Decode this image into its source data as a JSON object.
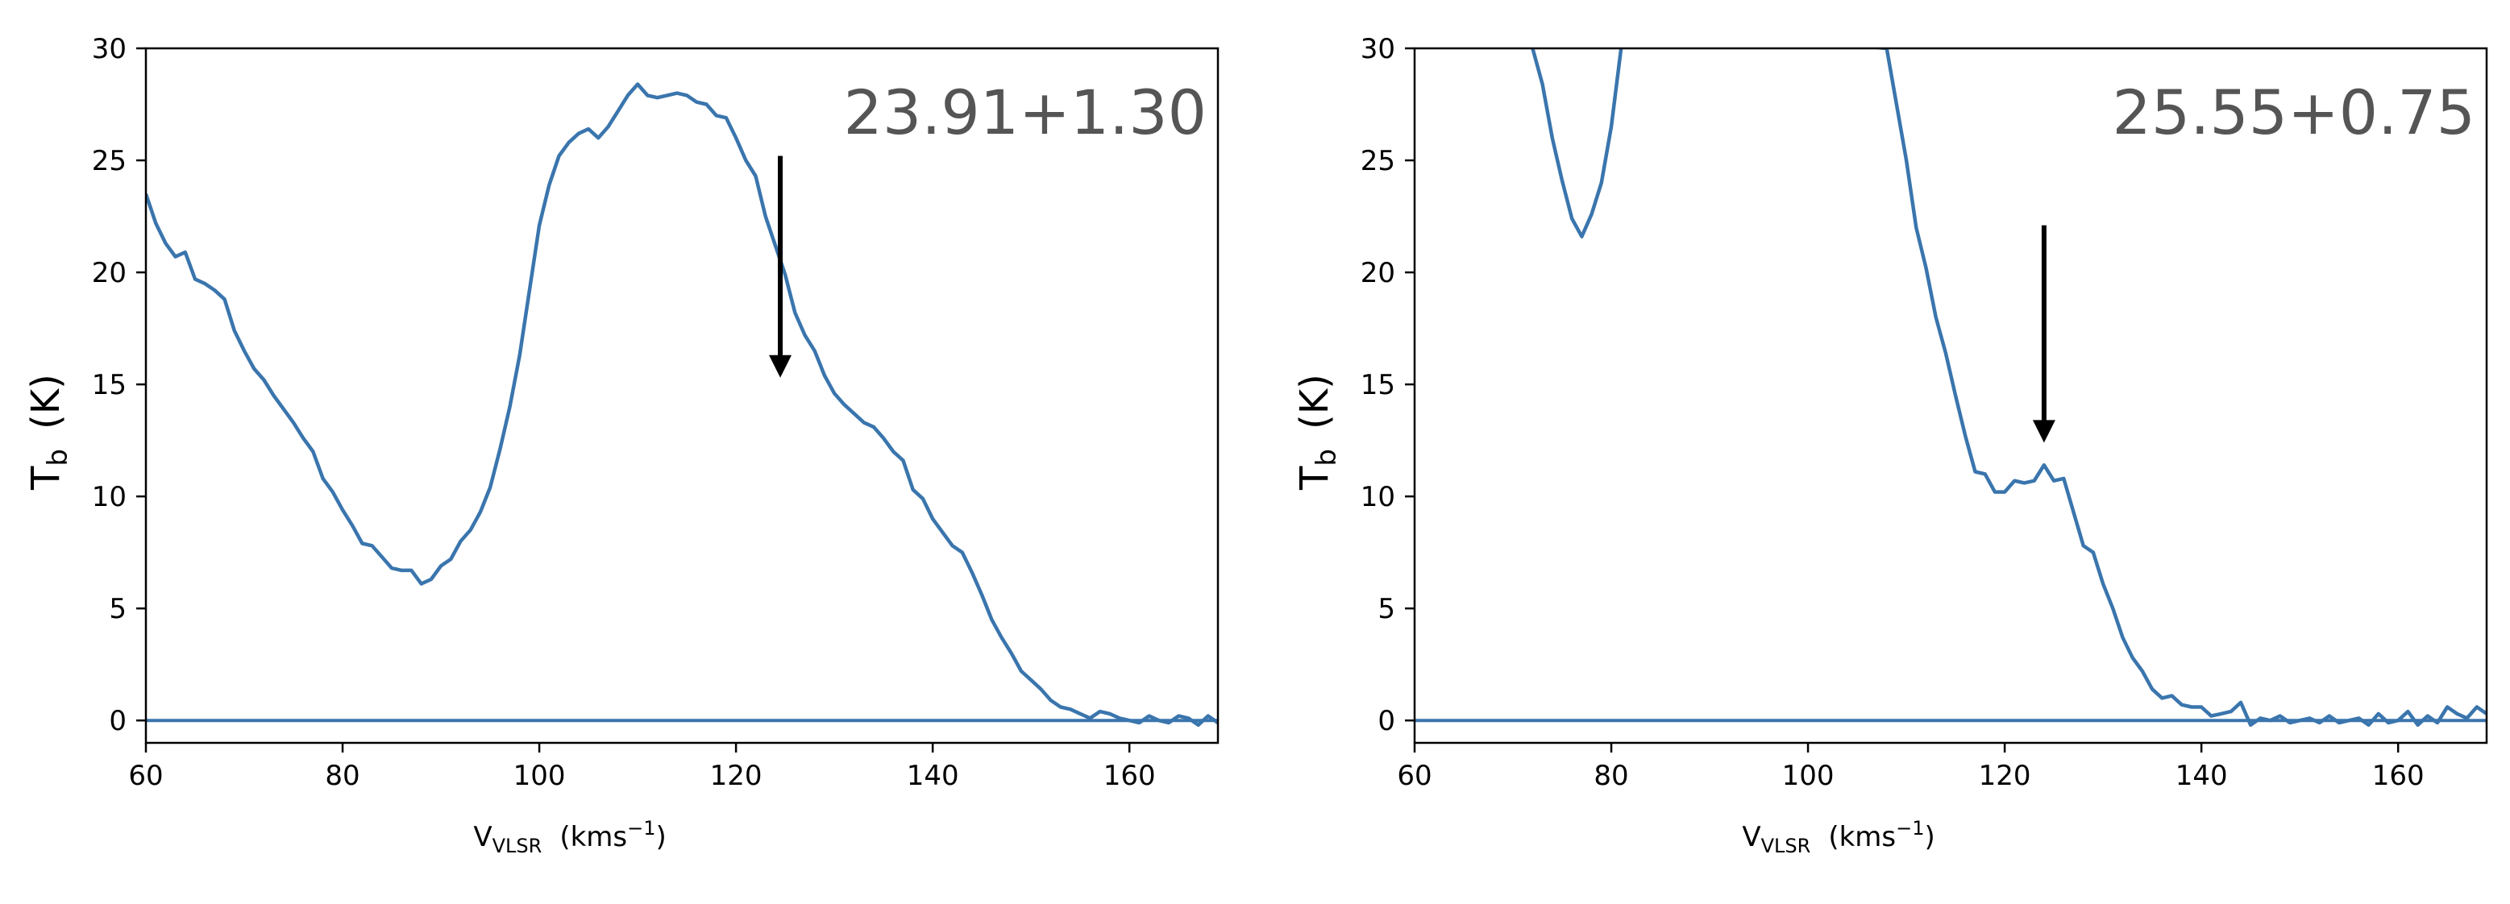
{
  "chart_data": [
    {
      "type": "line",
      "annotation": "23.91+1.30",
      "ylabel_main": "T",
      "ylabel_sub": "b",
      "ylabel_unit": "(K)",
      "xlabel_main": "V",
      "xlabel_sub": "VLSR",
      "xlabel_unit_pre": "(kms",
      "xlabel_unit_exp": "−1",
      "xlabel_unit_post": ")",
      "xlim": [
        60,
        169
      ],
      "ylim": [
        -1,
        30
      ],
      "xticks": [
        60,
        80,
        100,
        120,
        140,
        160
      ],
      "yticks": [
        0,
        5,
        10,
        15,
        20,
        25,
        30
      ],
      "arrow": {
        "x": 124.5,
        "y_from": 25.2,
        "y_to": 15.3
      },
      "baseline": 0,
      "series": [
        {
          "color": "#3a75ad",
          "x": [
            60,
            61,
            62,
            63,
            64,
            65,
            66,
            67,
            68,
            69,
            70,
            71,
            72,
            73,
            74,
            75,
            76,
            77,
            78,
            79,
            80,
            81,
            82,
            83,
            84,
            85,
            86,
            87,
            88,
            89,
            90,
            91,
            92,
            93,
            94,
            95,
            96,
            97,
            98,
            99,
            100,
            101,
            102,
            103,
            104,
            105,
            106,
            107,
            108,
            109,
            110,
            111,
            112,
            113,
            114,
            115,
            116,
            117,
            118,
            119,
            120,
            121,
            122,
            123,
            124,
            125,
            126,
            127,
            128,
            129,
            130,
            131,
            132,
            133,
            134,
            135,
            136,
            137,
            138,
            139,
            140,
            141,
            142,
            143,
            144,
            145,
            146,
            147,
            148,
            149,
            150,
            151,
            152,
            153,
            154,
            155,
            156,
            157,
            158,
            159,
            160,
            161,
            162,
            163,
            164,
            165,
            166,
            167,
            168,
            169
          ],
          "y": [
            23.5,
            22.2,
            21.3,
            20.7,
            20.9,
            19.7,
            19.5,
            19.2,
            18.8,
            17.4,
            16.5,
            15.7,
            15.2,
            14.5,
            13.9,
            13.3,
            12.6,
            12.0,
            10.8,
            10.2,
            9.4,
            8.7,
            7.9,
            7.8,
            7.3,
            6.8,
            6.7,
            6.7,
            6.1,
            6.3,
            6.9,
            7.2,
            8.0,
            8.5,
            9.3,
            10.4,
            12.1,
            14.0,
            16.3,
            19.2,
            22.1,
            23.9,
            25.2,
            25.8,
            26.2,
            26.4,
            26.0,
            26.5,
            27.2,
            27.9,
            28.4,
            27.9,
            27.8,
            27.9,
            28.0,
            27.9,
            27.6,
            27.5,
            27.0,
            26.9,
            26.0,
            25.0,
            24.3,
            22.5,
            21.2,
            19.9,
            18.2,
            17.2,
            16.5,
            15.4,
            14.6,
            14.1,
            13.7,
            13.3,
            13.1,
            12.6,
            12.0,
            11.6,
            10.3,
            9.9,
            9.0,
            8.4,
            7.8,
            7.5,
            6.6,
            5.6,
            4.5,
            3.7,
            3.0,
            2.2,
            1.8,
            1.4,
            0.9,
            0.6,
            0.5,
            0.3,
            0.1,
            0.4,
            0.3,
            0.1,
            0.0,
            -0.1,
            0.2,
            0.0,
            -0.1,
            0.2,
            0.1,
            -0.2,
            0.2,
            -0.1
          ]
        }
      ]
    },
    {
      "type": "line",
      "annotation": "25.55+0.75",
      "ylabel_main": "T",
      "ylabel_sub": "b",
      "ylabel_unit": "(K)",
      "xlabel_main": "V",
      "xlabel_sub": "VLSR",
      "xlabel_unit_pre": "(kms",
      "xlabel_unit_exp": "−1",
      "xlabel_unit_post": ")",
      "xlim": [
        60,
        169
      ],
      "ylim": [
        -1,
        30
      ],
      "xticks": [
        60,
        80,
        100,
        120,
        140,
        160
      ],
      "yticks": [
        0,
        5,
        10,
        15,
        20,
        25,
        30
      ],
      "arrow": {
        "x": 124,
        "y_from": 22.1,
        "y_to": 12.4
      },
      "baseline": 0,
      "series": [
        {
          "color": "#3a75ad",
          "x": [
            72,
            73,
            74,
            75,
            76,
            77,
            78,
            79,
            80,
            81,
            82,
            108,
            109,
            110,
            111,
            112,
            113,
            114,
            115,
            116,
            117,
            118,
            119,
            120,
            121,
            122,
            123,
            124,
            125,
            126,
            127,
            128,
            129,
            130,
            131,
            132,
            133,
            134,
            135,
            136,
            137,
            138,
            139,
            140,
            141,
            142,
            143,
            144,
            145,
            146,
            147,
            148,
            149,
            150,
            151,
            152,
            153,
            154,
            155,
            156,
            157,
            158,
            159,
            160,
            161,
            162,
            163,
            164,
            165,
            166,
            167,
            168,
            169
          ],
          "y": [
            30.0,
            28.4,
            26.0,
            24.1,
            22.4,
            21.6,
            22.6,
            24.0,
            26.5,
            30.0,
            31.0,
            30.0,
            27.5,
            25.0,
            22.0,
            20.2,
            18.0,
            16.4,
            14.5,
            12.7,
            11.1,
            11.0,
            10.2,
            10.2,
            10.7,
            10.6,
            10.7,
            11.4,
            10.7,
            10.8,
            9.3,
            7.8,
            7.5,
            6.1,
            5.0,
            3.7,
            2.8,
            2.2,
            1.4,
            1.0,
            1.1,
            0.7,
            0.6,
            0.6,
            0.2,
            0.3,
            0.4,
            0.8,
            -0.2,
            0.1,
            0.0,
            0.2,
            -0.1,
            0.0,
            0.1,
            -0.1,
            0.2,
            -0.1,
            0.0,
            0.1,
            -0.2,
            0.3,
            -0.1,
            0.0,
            0.4,
            -0.2,
            0.2,
            -0.1,
            0.6,
            0.3,
            0.1,
            0.6,
            0.3
          ]
        }
      ]
    }
  ]
}
